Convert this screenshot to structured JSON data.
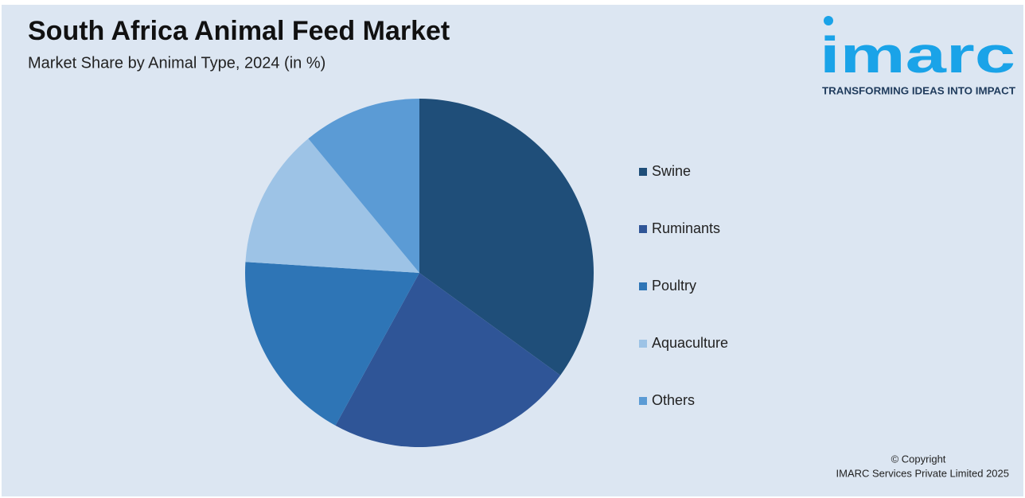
{
  "chart_data": {
    "type": "pie",
    "title": "South Africa Animal Feed Market",
    "subtitle": "Market Share by Animal Type, 2024 (in %)",
    "categories": [
      "Swine",
      "Ruminants",
      "Poultry",
      "Aquaculture",
      "Others"
    ],
    "values": [
      35,
      23,
      18,
      13,
      11
    ],
    "colors": [
      "#1f4e79",
      "#2f5597",
      "#2e75b6",
      "#9dc3e6",
      "#5b9bd5"
    ],
    "legend": "right"
  },
  "logo": {
    "name": "imarc",
    "tagline": "TRANSFORMING IDEAS INTO IMPACT"
  },
  "footer": {
    "copyright": "© Copyright",
    "owner": "IMARC Services Private Limited 2025"
  }
}
